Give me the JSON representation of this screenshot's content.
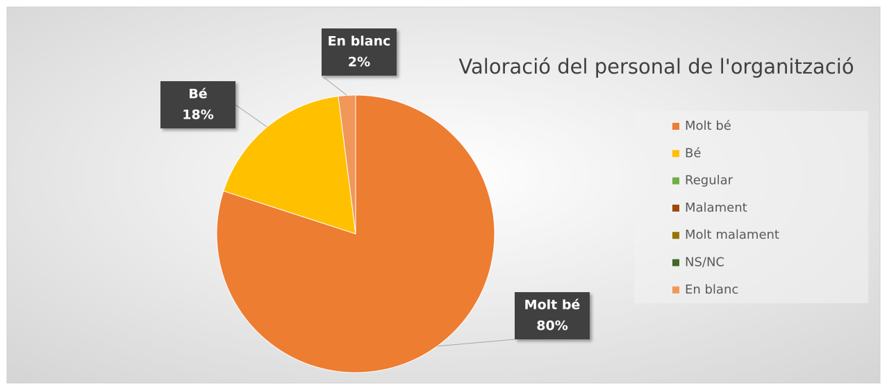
{
  "chart_data": {
    "type": "pie",
    "title": "Valoració del personal de l'organització",
    "categories": [
      "Molt bé",
      "Bé",
      "Regular",
      "Malament",
      "Molt malament",
      "NS/NC",
      "En blanc"
    ],
    "values": [
      80,
      18,
      0,
      0,
      0,
      0,
      2
    ],
    "value_labels": [
      "80%",
      "18%",
      null,
      null,
      null,
      null,
      "2%"
    ],
    "colors": [
      "#ed7d31",
      "#ffc000",
      "#70ad47",
      "#9e480e",
      "#997300",
      "#43682b",
      "#f1975a"
    ],
    "legend": "right"
  }
}
